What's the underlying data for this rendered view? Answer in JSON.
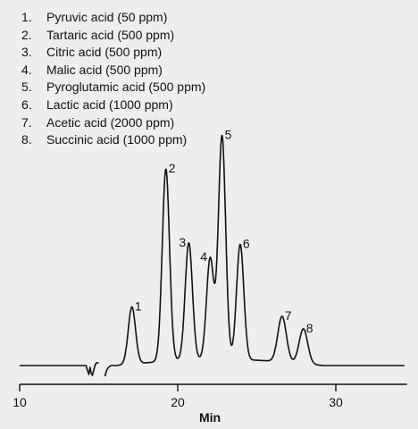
{
  "chart_data": {
    "type": "line",
    "title": "",
    "xlabel": "Min",
    "ylabel": "",
    "xlim": [
      10,
      34.5
    ],
    "x_ticks": [
      10,
      20,
      30
    ],
    "tick_labels": [
      "10",
      "20",
      "30"
    ],
    "grid": false,
    "legend": [
      {
        "num": "1.",
        "label": "Pyruvic acid (50 ppm)"
      },
      {
        "num": "2.",
        "label": "Tartaric acid (500 ppm)"
      },
      {
        "num": "3.",
        "label": "Citric acid (500 ppm)"
      },
      {
        "num": "4.",
        "label": "Malic acid (500 ppm)"
      },
      {
        "num": "5.",
        "label": "Pyroglutamic acid (500 ppm)"
      },
      {
        "num": "6.",
        "label": "Lactic acid (1000 ppm)"
      },
      {
        "num": "7.",
        "label": "Acetic acid (2000 ppm)"
      },
      {
        "num": "8.",
        "label": "Succinic acid (1000 ppm)"
      }
    ],
    "peaks": [
      {
        "label": "1",
        "x": 17.1,
        "height": 64
      },
      {
        "label": "2",
        "x": 19.25,
        "height": 215
      },
      {
        "label": "3",
        "x": 20.7,
        "height": 131
      },
      {
        "label": "4",
        "x": 22.05,
        "height": 113
      },
      {
        "label": "5",
        "x": 22.8,
        "height": 250
      },
      {
        "label": "6",
        "x": 23.95,
        "height": 129
      },
      {
        "label": "7",
        "x": 26.6,
        "height": 51
      },
      {
        "label": "8",
        "x": 27.95,
        "height": 39
      }
    ]
  }
}
